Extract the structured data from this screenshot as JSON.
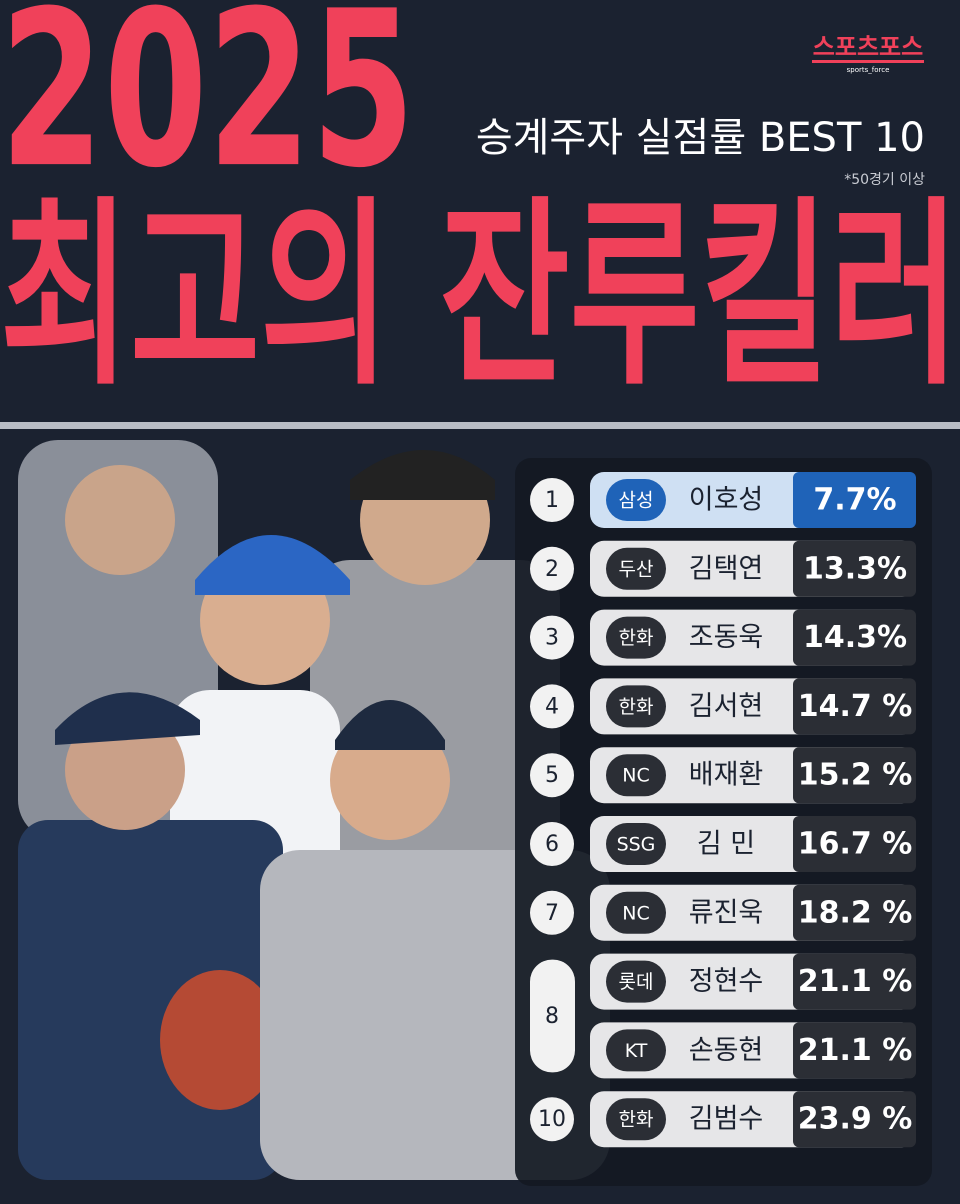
{
  "header": {
    "year": "2025",
    "title": "최고의 잔루킬러",
    "subtitle": "승계주자 실점률 BEST 10",
    "note": "*50경기 이상",
    "logo": "스포츠포스",
    "logo_sub": "sports_force"
  },
  "table": {
    "rows": [
      {
        "rank": "1",
        "players": [
          {
            "team": "삼성",
            "name": "이호성",
            "rate": "7.7%"
          }
        ]
      },
      {
        "rank": "2",
        "players": [
          {
            "team": "두산",
            "name": "김택연",
            "rate": "13.3%"
          }
        ]
      },
      {
        "rank": "3",
        "players": [
          {
            "team": "한화",
            "name": "조동욱",
            "rate": "14.3%"
          }
        ]
      },
      {
        "rank": "4",
        "players": [
          {
            "team": "한화",
            "name": "김서현",
            "rate": "14.7 %"
          }
        ]
      },
      {
        "rank": "5",
        "players": [
          {
            "team": "NC",
            "name": "배재환",
            "rate": "15.2 %"
          }
        ]
      },
      {
        "rank": "6",
        "players": [
          {
            "team": "SSG",
            "name": "김 민",
            "rate": "16.7 %"
          }
        ]
      },
      {
        "rank": "7",
        "players": [
          {
            "team": "NC",
            "name": "류진욱",
            "rate": "18.2 %"
          }
        ]
      },
      {
        "rank": "8",
        "players": [
          {
            "team": "롯데",
            "name": "정현수",
            "rate": "21.1 %"
          },
          {
            "team": "KT",
            "name": "손동현",
            "rate": "21.1 %"
          }
        ]
      },
      {
        "rank": "10",
        "players": [
          {
            "team": "한화",
            "name": "김범수",
            "rate": "23.9 %"
          }
        ]
      }
    ]
  }
}
